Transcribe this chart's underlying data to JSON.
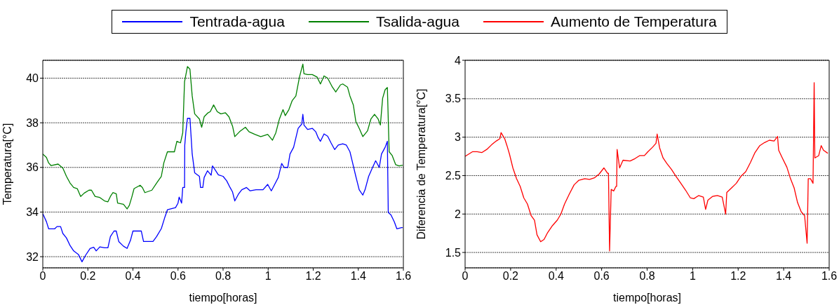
{
  "chart_data": [
    {
      "type": "line",
      "xlabel": "tiempo[horas]",
      "ylabel": "Temperatura[°C]",
      "xlim": [
        0,
        1.6
      ],
      "xticks": [
        0,
        0.2,
        0.4,
        0.6,
        0.8,
        1,
        1.2,
        1.4,
        1.6
      ],
      "ylim": [
        31.5,
        40.8
      ],
      "yticks": [
        32,
        34,
        36,
        38,
        40
      ],
      "grid": "y",
      "legend": "top",
      "series": [
        {
          "name": "Tentrada-agua",
          "color": "#0000ff",
          "x": [
            0,
            0.016,
            0.026,
            0.053,
            0.063,
            0.079,
            0.089,
            0.105,
            0.121,
            0.137,
            0.158,
            0.174,
            0.189,
            0.21,
            0.226,
            0.237,
            0.253,
            0.274,
            0.289,
            0.3,
            0.316,
            0.326,
            0.337,
            0.358,
            0.374,
            0.389,
            0.4,
            0.437,
            0.447,
            0.489,
            0.505,
            0.526,
            0.542,
            0.553,
            0.589,
            0.6,
            0.605,
            0.616,
            0.621,
            0.629,
            0.63,
            0.635,
            0.642,
            0.653,
            0.663,
            0.674,
            0.695,
            0.7,
            0.71,
            0.716,
            0.731,
            0.747,
            0.753,
            0.764,
            0.779,
            0.8,
            0.816,
            0.831,
            0.842,
            0.852,
            0.868,
            0.883,
            0.904,
            0.92,
            0.946,
            0.977,
            0.998,
            1.014,
            1.029,
            1.045,
            1.06,
            1.071,
            1.087,
            1.097,
            1.113,
            1.133,
            1.149,
            1.154,
            1.159,
            1.175,
            1.196,
            1.211,
            1.222,
            1.232,
            1.248,
            1.264,
            1.279,
            1.295,
            1.311,
            1.331,
            1.347,
            1.363,
            1.373,
            1.389,
            1.404,
            1.42,
            1.43,
            1.446,
            1.462,
            1.477,
            1.493,
            1.503,
            1.519,
            1.529,
            1.533,
            1.545,
            1.56,
            1.571,
            1.592,
            1.597
          ],
          "values": [
            33.93,
            33.57,
            33.25,
            33.25,
            33.35,
            33.35,
            33.04,
            32.84,
            32.5,
            32.26,
            32.1,
            31.77,
            32.05,
            32.37,
            32.42,
            32.26,
            32.44,
            32.4,
            32.4,
            32.9,
            33.15,
            33.15,
            32.68,
            32.47,
            32.37,
            32.73,
            33.15,
            33.15,
            32.68,
            32.68,
            32.9,
            33.26,
            33.78,
            34.1,
            34.2,
            34.4,
            34.67,
            34.4,
            35.1,
            35.1,
            37,
            37.6,
            38.2,
            38.2,
            36.6,
            35.76,
            35.6,
            35.1,
            35.1,
            35.55,
            35.85,
            35.65,
            36.07,
            35.9,
            35.67,
            35.6,
            35.4,
            35.1,
            34.9,
            34.5,
            34.8,
            35,
            35.1,
            34.95,
            35,
            35,
            35.24,
            34.95,
            35.24,
            35.55,
            36.18,
            36,
            36,
            36.6,
            36.9,
            37.75,
            37.94,
            38.38,
            37.9,
            37.7,
            37.75,
            37.6,
            37.33,
            37.17,
            37.5,
            37.4,
            37.1,
            36.8,
            37,
            37.06,
            37,
            36.7,
            36.28,
            35.6,
            35,
            34.76,
            35,
            35.6,
            35.97,
            36.3,
            36,
            36.6,
            36.9,
            37.17,
            33.98,
            33.87,
            33.56,
            33.25,
            33.3,
            33.3
          ]
        },
        {
          "name": "Tsalida-agua",
          "color": "#008000",
          "x": [
            0,
            0.016,
            0.026,
            0.037,
            0.068,
            0.089,
            0.105,
            0.121,
            0.137,
            0.153,
            0.168,
            0.184,
            0.205,
            0.216,
            0.232,
            0.253,
            0.274,
            0.289,
            0.3,
            0.311,
            0.326,
            0.332,
            0.358,
            0.374,
            0.384,
            0.395,
            0.405,
            0.432,
            0.442,
            0.453,
            0.484,
            0.505,
            0.526,
            0.537,
            0.553,
            0.584,
            0.595,
            0.611,
            0.621,
            0.629,
            0.642,
            0.653,
            0.663,
            0.674,
            0.695,
            0.705,
            0.716,
            0.731,
            0.743,
            0.758,
            0.774,
            0.79,
            0.81,
            0.826,
            0.842,
            0.852,
            0.873,
            0.899,
            0.915,
            0.941,
            0.967,
            0.982,
            0.998,
            1.019,
            1.034,
            1.05,
            1.066,
            1.076,
            1.092,
            1.107,
            1.123,
            1.139,
            1.154,
            1.159,
            1.175,
            1.196,
            1.217,
            1.232,
            1.248,
            1.264,
            1.285,
            1.3,
            1.321,
            1.331,
            1.352,
            1.363,
            1.378,
            1.389,
            1.404,
            1.42,
            1.441,
            1.456,
            1.472,
            1.488,
            1.498,
            1.508,
            1.519,
            1.529,
            1.537,
            1.55,
            1.566,
            1.581,
            1.597
          ],
          "values": [
            36.6,
            36.45,
            36.2,
            36.08,
            36.15,
            35.97,
            35.6,
            35.3,
            35.1,
            35.05,
            34.7,
            34.85,
            34.98,
            34.98,
            34.7,
            34.65,
            34.5,
            34.46,
            34.7,
            34.87,
            34.82,
            34.4,
            34.35,
            34.14,
            34.3,
            34.67,
            35.05,
            35.2,
            35.1,
            34.87,
            34.98,
            35.3,
            35.6,
            36.2,
            36.7,
            36.7,
            37.17,
            37.1,
            37.55,
            39.84,
            40.52,
            40.4,
            39.2,
            38.4,
            38.17,
            37.8,
            38.27,
            38.43,
            38.5,
            38.8,
            38.5,
            38.4,
            38.45,
            38.27,
            37.85,
            37.38,
            37.6,
            37.8,
            37.6,
            37.48,
            37.38,
            37.43,
            37.48,
            37.22,
            37.55,
            38.17,
            38.59,
            38.32,
            38.59,
            39,
            39.2,
            40.05,
            40.63,
            40.2,
            40.16,
            40.16,
            40.05,
            39.74,
            40.1,
            40,
            39.6,
            39.38,
            39.7,
            39.74,
            39.6,
            39.2,
            38.8,
            38.06,
            37.75,
            37.38,
            37.64,
            38.17,
            38.38,
            38.17,
            37.9,
            39.1,
            39.48,
            39.58,
            36.7,
            36.54,
            36.12,
            36.07,
            36.1
          ]
        }
      ]
    },
    {
      "type": "line",
      "xlabel": "tiempo[horas]",
      "ylabel": "Diferencia de Temperatura[°C]",
      "xlim": [
        0,
        1.6
      ],
      "xticks": [
        0,
        0.2,
        0.4,
        0.6,
        0.8,
        1,
        1.2,
        1.4,
        1.6
      ],
      "ylim": [
        1.3,
        4
      ],
      "yticks": [
        1.5,
        2,
        2.5,
        3,
        3.5,
        4
      ],
      "grid": "y",
      "legend": "top",
      "series": [
        {
          "name": "Aumento de Temperatura",
          "color": "#ff0000",
          "x": [
            0,
            0.016,
            0.032,
            0.053,
            0.074,
            0.095,
            0.116,
            0.137,
            0.153,
            0.158,
            0.174,
            0.184,
            0.195,
            0.21,
            0.226,
            0.242,
            0.258,
            0.274,
            0.29,
            0.305,
            0.316,
            0.332,
            0.347,
            0.363,
            0.384,
            0.405,
            0.421,
            0.437,
            0.458,
            0.479,
            0.5,
            0.526,
            0.547,
            0.568,
            0.589,
            0.61,
            0.626,
            0.63,
            0.635,
            0.642,
            0.653,
            0.663,
            0.666,
            0.668,
            0.679,
            0.694,
            0.725,
            0.746,
            0.767,
            0.788,
            0.803,
            0.824,
            0.839,
            0.844,
            0.855,
            0.87,
            0.886,
            0.907,
            0.927,
            0.948,
            0.969,
            0.99,
            1.005,
            1.026,
            1.047,
            1.057,
            1.067,
            1.088,
            1.109,
            1.13,
            1.145,
            1.15,
            1.171,
            1.192,
            1.212,
            1.233,
            1.254,
            1.274,
            1.295,
            1.316,
            1.337,
            1.358,
            1.373,
            1.378,
            1.394,
            1.414,
            1.43,
            1.446,
            1.461,
            1.477,
            1.492,
            1.503,
            1.508,
            1.518,
            1.529,
            1.534,
            1.537,
            1.554,
            1.565,
            1.575,
            1.594
          ],
          "values": [
            2.75,
            2.78,
            2.81,
            2.81,
            2.8,
            2.84,
            2.9,
            2.95,
            2.98,
            3.06,
            2.98,
            2.89,
            2.78,
            2.6,
            2.46,
            2.36,
            2.21,
            2.13,
            1.98,
            1.92,
            1.73,
            1.64,
            1.67,
            1.76,
            1.85,
            1.92,
            2,
            2.13,
            2.26,
            2.38,
            2.44,
            2.46,
            2.45,
            2.47,
            2.52,
            2.6,
            2.53,
            2.53,
            1.52,
            2.32,
            2.3,
            2.36,
            2.36,
            2.84,
            2.6,
            2.7,
            2.69,
            2.72,
            2.76,
            2.76,
            2.81,
            2.87,
            2.92,
            3.04,
            2.86,
            2.73,
            2.66,
            2.58,
            2.49,
            2.4,
            2.31,
            2.21,
            2.2,
            2.24,
            2.22,
            2.06,
            2.18,
            2.23,
            2.24,
            2.22,
            2,
            2.28,
            2.34,
            2.4,
            2.49,
            2.55,
            2.67,
            2.8,
            2.89,
            2.93,
            2.96,
            2.95,
            3.01,
            2.83,
            2.73,
            2.61,
            2.46,
            2.34,
            2.15,
            2.03,
            1.98,
            1.62,
            2.46,
            2.46,
            2.4,
            3.71,
            2.73,
            2.76,
            2.89,
            2.83,
            2.79
          ]
        }
      ]
    }
  ]
}
